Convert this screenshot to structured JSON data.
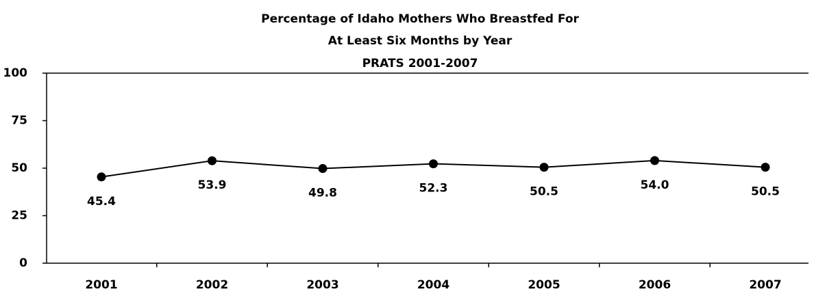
{
  "chart_data": {
    "type": "line",
    "title": [
      "Percentage of Idaho Mothers Who Breastfed For",
      "At Least Six Months by Year",
      "PRATS 2001-2007"
    ],
    "categories": [
      "2001",
      "2002",
      "2003",
      "2004",
      "2005",
      "2006",
      "2007"
    ],
    "series": [
      {
        "color": "#000000",
        "values": [
          45.4,
          53.9,
          49.8,
          52.3,
          50.5,
          54.0,
          50.5
        ],
        "value_labels": [
          "45.4",
          "53.9",
          "49.8",
          "52.3",
          "50.5",
          "54.0",
          "50.5"
        ]
      }
    ],
    "ylim": [
      0,
      100
    ],
    "yticks": [
      0,
      25,
      50,
      75,
      100
    ]
  }
}
